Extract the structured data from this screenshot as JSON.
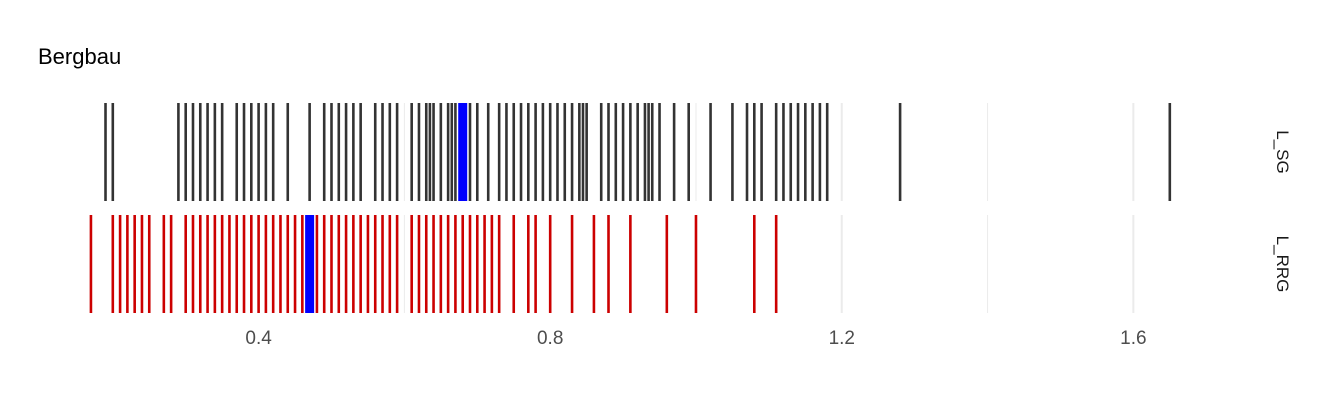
{
  "chart_data": {
    "type": "rug",
    "title": "Bergbau",
    "xlabel": "",
    "ylabel": "",
    "xlim": [
      0.155,
      1.76
    ],
    "x_ticks": [
      0.4,
      0.8,
      1.2,
      1.6
    ],
    "x_tick_labels": [
      "0.4",
      "0.8",
      "1.2",
      "1.6"
    ],
    "grid": true,
    "highlight_color": "#0000ff",
    "series": [
      {
        "name": "L_SG",
        "color": "#333333",
        "values": [
          0.19,
          0.2,
          0.29,
          0.3,
          0.31,
          0.32,
          0.33,
          0.34,
          0.35,
          0.37,
          0.38,
          0.39,
          0.4,
          0.41,
          0.42,
          0.44,
          0.47,
          0.49,
          0.5,
          0.51,
          0.52,
          0.53,
          0.54,
          0.56,
          0.57,
          0.58,
          0.59,
          0.61,
          0.62,
          0.63,
          0.635,
          0.64,
          0.65,
          0.66,
          0.665,
          0.67,
          0.68,
          0.69,
          0.7,
          0.715,
          0.73,
          0.74,
          0.75,
          0.76,
          0.77,
          0.78,
          0.79,
          0.8,
          0.81,
          0.82,
          0.83,
          0.84,
          0.845,
          0.85,
          0.87,
          0.88,
          0.89,
          0.9,
          0.91,
          0.92,
          0.93,
          0.935,
          0.94,
          0.95,
          0.97,
          0.99,
          1.02,
          1.05,
          1.07,
          1.08,
          1.09,
          1.11,
          1.12,
          1.13,
          1.14,
          1.15,
          1.16,
          1.17,
          1.18,
          1.28,
          1.65
        ],
        "highlight": 0.68
      },
      {
        "name": "L_RRG",
        "color": "#cc0000",
        "values": [
          0.17,
          0.2,
          0.21,
          0.22,
          0.23,
          0.24,
          0.25,
          0.27,
          0.28,
          0.3,
          0.31,
          0.32,
          0.33,
          0.34,
          0.35,
          0.36,
          0.37,
          0.38,
          0.39,
          0.4,
          0.41,
          0.42,
          0.43,
          0.44,
          0.45,
          0.46,
          0.47,
          0.48,
          0.49,
          0.5,
          0.51,
          0.52,
          0.53,
          0.54,
          0.55,
          0.56,
          0.57,
          0.58,
          0.59,
          0.61,
          0.62,
          0.63,
          0.64,
          0.65,
          0.66,
          0.67,
          0.68,
          0.69,
          0.7,
          0.71,
          0.72,
          0.73,
          0.75,
          0.77,
          0.78,
          0.8,
          0.83,
          0.86,
          0.88,
          0.91,
          0.96,
          1.0,
          1.08,
          1.11
        ],
        "highlight": 0.47
      }
    ]
  }
}
